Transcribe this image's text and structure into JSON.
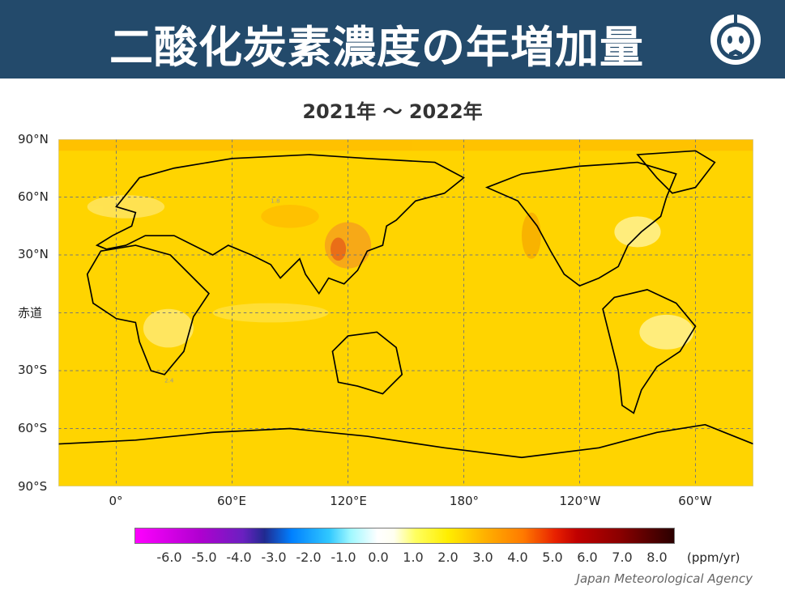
{
  "header": {
    "title": "二酸化炭素濃度の年増加量",
    "logo": "jma-mascot-icon"
  },
  "subtitle": "2021年 〜 2022年",
  "map": {
    "lat_labels": [
      "90°N",
      "60°N",
      "30°N",
      "赤道",
      "30°S",
      "60°S",
      "90°S"
    ],
    "lon_labels": [
      "0°",
      "60°E",
      "120°E",
      "180°",
      "120°W",
      "60°W"
    ],
    "contour_labels": [
      "1.8",
      "2.4"
    ],
    "background_color": "#ffd400"
  },
  "colorbar": {
    "ticks": [
      "-6.0",
      "-5.0",
      "-4.0",
      "-3.0",
      "-2.0",
      "-1.0",
      "0.0",
      "1.0",
      "2.0",
      "3.0",
      "4.0",
      "5.0",
      "6.0",
      "7.0",
      "8.0"
    ],
    "unit": "(ppm/yr)",
    "range": [
      -7,
      8.5
    ]
  },
  "credit": "Japan Meteorological Agency"
}
